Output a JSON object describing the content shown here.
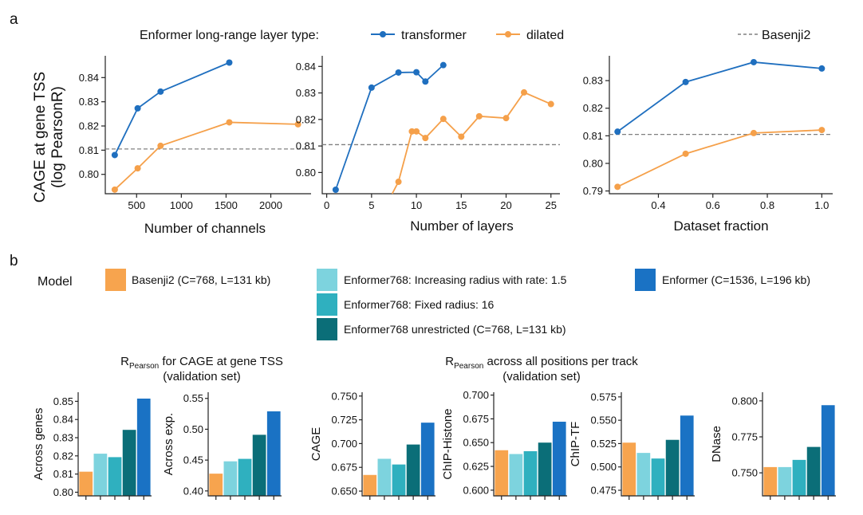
{
  "panel_a_label": "a",
  "panel_b_label": "b",
  "legend_a": {
    "title": "Enformer long-range layer type:",
    "items": [
      {
        "label": "transformer",
        "color": "#1f6fbf",
        "style": "line-dot"
      },
      {
        "label": "dilated",
        "color": "#f5a04a",
        "style": "line-dot"
      },
      {
        "label": "Basenji2",
        "color": "#808080",
        "style": "dashed"
      }
    ]
  },
  "legend_b": {
    "title": "Model",
    "items": [
      {
        "label": "Basenji2 (C=768, L=131 kb)",
        "color": "#f7a44e"
      },
      {
        "label": "Enformer768: Increasing radius with rate: 1.5",
        "color": "#7dd3de"
      },
      {
        "label": "Enformer768: Fixed radius: 16",
        "color": "#2fb0bf"
      },
      {
        "label": "Enformer768 unrestricted (C=768, L=131 kb)",
        "color": "#0b6e78"
      },
      {
        "label": "Enformer (C=1536, L=196 kb)",
        "color": "#1a72c4"
      }
    ]
  },
  "group_titles": [
    {
      "line1_main": "R",
      "line1_sub": "Pearson",
      "line1_rest": " for CAGE at gene TSS",
      "line2": "(validation set)"
    },
    {
      "line1_main": "R",
      "line1_sub": "Pearson",
      "line1_rest": " across all positions per track",
      "line2": "(validation set)"
    }
  ],
  "chart_data": [
    {
      "type": "line",
      "ylabel": [
        "CAGE at gene TSS",
        "(log PearsonR)"
      ],
      "xlabel": "Number of channels",
      "xlim": [
        150,
        2450
      ],
      "ylim": [
        0.792,
        0.849
      ],
      "xticks": [
        500,
        1000,
        1500,
        2000
      ],
      "xtick_labels": [
        "500",
        "1000",
        "1500",
        "2000"
      ],
      "yticks": [
        0.8,
        0.81,
        0.82,
        0.83,
        0.84
      ],
      "ytick_labels": [
        "0.80",
        "0.81",
        "0.82",
        "0.83",
        "0.84"
      ],
      "baseline": {
        "name": "Basenji2",
        "y": 0.8105
      },
      "series": [
        {
          "name": "transformer",
          "color": "#1f6fbf",
          "x": [
            256,
            512,
            768,
            1536
          ],
          "y": [
            0.808,
            0.8273,
            0.8342,
            0.8462
          ]
        },
        {
          "name": "dilated",
          "color": "#f5a04a",
          "x": [
            256,
            512,
            768,
            1536,
            2304
          ],
          "y": [
            0.7937,
            0.8025,
            0.8118,
            0.8215,
            0.8207
          ]
        }
      ]
    },
    {
      "type": "line",
      "ylabel": null,
      "xlabel": "Number of layers",
      "xlim": [
        -0.5,
        26
      ],
      "ylim": [
        0.792,
        0.844
      ],
      "xticks": [
        0,
        5,
        10,
        15,
        20,
        25
      ],
      "xtick_labels": [
        "0",
        "5",
        "10",
        "15",
        "20",
        "25"
      ],
      "yticks": [
        0.8,
        0.81,
        0.82,
        0.83,
        0.84
      ],
      "ytick_labels": [
        "0.80",
        "0.81",
        "0.82",
        "0.83",
        "0.84"
      ],
      "baseline": {
        "name": "Basenji2",
        "y": 0.8105
      },
      "series": [
        {
          "name": "transformer",
          "color": "#1f6fbf",
          "x": [
            1,
            5,
            8,
            10,
            11,
            13
          ],
          "y": [
            0.7935,
            0.832,
            0.8377,
            0.8378,
            0.8343,
            0.8405
          ]
        },
        {
          "name": "dilated",
          "color": "#f5a04a",
          "x": [
            7.3,
            8,
            9.5,
            10,
            11,
            13,
            15,
            17,
            20,
            22,
            25
          ],
          "y": [
            0.792,
            0.7965,
            0.8155,
            0.8155,
            0.813,
            0.8202,
            0.8135,
            0.8212,
            0.8205,
            0.8302,
            0.8258
          ]
        }
      ]
    },
    {
      "type": "line",
      "ylabel": null,
      "xlabel": "Dataset fraction",
      "xlim": [
        0.22,
        1.04
      ],
      "ylim": [
        0.789,
        0.839
      ],
      "xticks": [
        0.4,
        0.6,
        0.8,
        1.0
      ],
      "xtick_labels": [
        "0.4",
        "0.6",
        "0.8",
        "1.0"
      ],
      "yticks": [
        0.79,
        0.8,
        0.81,
        0.82,
        0.83
      ],
      "ytick_labels": [
        "0.79",
        "0.80",
        "0.81",
        "0.82",
        "0.83"
      ],
      "baseline": {
        "name": "Basenji2",
        "y": 0.8105
      },
      "series": [
        {
          "name": "transformer",
          "color": "#1f6fbf",
          "x": [
            0.25,
            0.5,
            0.75,
            1.0
          ],
          "y": [
            0.8115,
            0.8295,
            0.8367,
            0.8344
          ]
        },
        {
          "name": "dilated",
          "color": "#f5a04a",
          "x": [
            0.25,
            0.5,
            0.75,
            1.0
          ],
          "y": [
            0.7915,
            0.8035,
            0.811,
            0.8121
          ]
        }
      ]
    },
    {
      "type": "bar",
      "ylabel": "Across genes",
      "ylim": [
        0.798,
        0.855
      ],
      "yticks": [
        0.8,
        0.81,
        0.82,
        0.83,
        0.84,
        0.85
      ],
      "ytick_labels": [
        "0.80",
        "0.81",
        "0.82",
        "0.83",
        "0.84",
        "0.85"
      ],
      "values": [
        0.8113,
        0.8212,
        0.8193,
        0.8343,
        0.8515
      ]
    },
    {
      "type": "bar",
      "ylabel": "Across exp.",
      "ylim": [
        0.392,
        0.56
      ],
      "yticks": [
        0.4,
        0.45,
        0.5,
        0.55
      ],
      "ytick_labels": [
        "0.40",
        "0.45",
        "0.50",
        "0.55"
      ],
      "values": [
        0.428,
        0.448,
        0.452,
        0.491,
        0.529
      ]
    },
    {
      "type": "bar",
      "ylabel": "CAGE",
      "ylim": [
        0.645,
        0.754
      ],
      "yticks": [
        0.65,
        0.675,
        0.7,
        0.725,
        0.75
      ],
      "ytick_labels": [
        "0.650",
        "0.675",
        "0.700",
        "0.725",
        "0.750"
      ],
      "values": [
        0.667,
        0.684,
        0.678,
        0.699,
        0.722
      ]
    },
    {
      "type": "bar",
      "ylabel": "ChIP-Histone",
      "ylim": [
        0.594,
        0.703
      ],
      "yticks": [
        0.6,
        0.625,
        0.65,
        0.675,
        0.7
      ],
      "ytick_labels": [
        "0.600",
        "0.625",
        "0.650",
        "0.675",
        "0.700"
      ],
      "values": [
        0.642,
        0.638,
        0.641,
        0.65,
        0.672
      ]
    },
    {
      "type": "bar",
      "ylabel": "ChIP-TF",
      "ylim": [
        0.469,
        0.58
      ],
      "yticks": [
        0.475,
        0.5,
        0.525,
        0.55,
        0.575
      ],
      "ytick_labels": [
        "0.475",
        "0.500",
        "0.525",
        "0.550",
        "0.575"
      ],
      "values": [
        0.526,
        0.515,
        0.509,
        0.529,
        0.555
      ]
    },
    {
      "type": "bar",
      "ylabel": "DNase",
      "ylim": [
        0.734,
        0.806
      ],
      "yticks": [
        0.75,
        0.775,
        0.8
      ],
      "ytick_labels": [
        "0.750",
        "0.775",
        "0.800"
      ],
      "values": [
        0.754,
        0.754,
        0.759,
        0.768,
        0.797
      ]
    }
  ]
}
